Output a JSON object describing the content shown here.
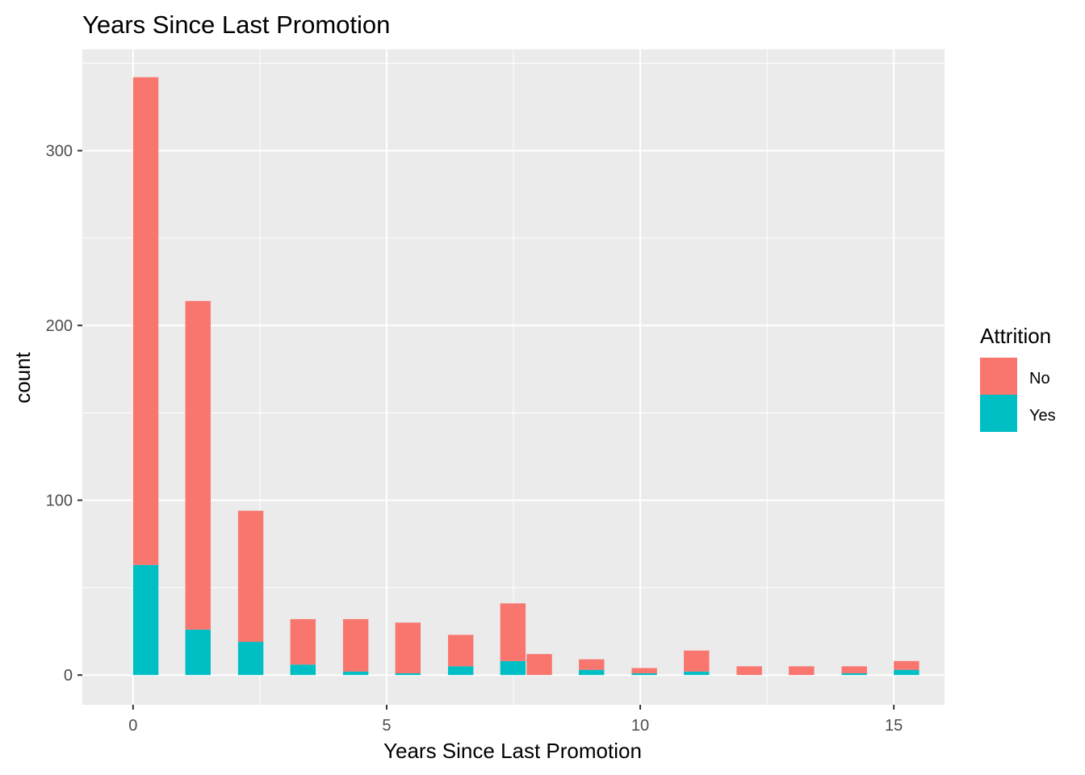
{
  "chart_data": {
    "type": "bar",
    "stacked": true,
    "title": "Years Since Last Promotion",
    "xlabel": "Years Since Last Promotion",
    "ylabel": "count",
    "xlim": [
      -1,
      16
    ],
    "ylim": [
      -17,
      358
    ],
    "x_ticks": [
      0,
      5,
      10,
      15
    ],
    "y_ticks": [
      0,
      100,
      200,
      300
    ],
    "grid": true,
    "legend": {
      "title": "Attrition",
      "position": "right"
    },
    "bin_width": 0.5,
    "bins": [
      {
        "x": 0.0,
        "no": 279,
        "yes": 63
      },
      {
        "x": 1.03,
        "no": 188,
        "yes": 26
      },
      {
        "x": 2.07,
        "no": 75,
        "yes": 19
      },
      {
        "x": 3.1,
        "no": 26,
        "yes": 6
      },
      {
        "x": 4.14,
        "no": 30,
        "yes": 2
      },
      {
        "x": 5.17,
        "no": 29,
        "yes": 1
      },
      {
        "x": 6.21,
        "no": 18,
        "yes": 5
      },
      {
        "x": 7.24,
        "no": 33,
        "yes": 8
      },
      {
        "x": 7.76,
        "no": 12,
        "yes": 0
      },
      {
        "x": 8.79,
        "no": 6,
        "yes": 3
      },
      {
        "x": 9.83,
        "no": 3,
        "yes": 1
      },
      {
        "x": 10.86,
        "no": 12,
        "yes": 2
      },
      {
        "x": 11.9,
        "no": 5,
        "yes": 0
      },
      {
        "x": 12.93,
        "no": 5,
        "yes": 0
      },
      {
        "x": 13.97,
        "no": 4,
        "yes": 1
      },
      {
        "x": 15.0,
        "no": 5,
        "yes": 3
      }
    ],
    "series": [
      {
        "name": "No",
        "color": "#F8766D"
      },
      {
        "name": "Yes",
        "color": "#00BFC4"
      }
    ],
    "panel_color": "#EBEBEB",
    "grid_color": "#FFFFFF"
  }
}
